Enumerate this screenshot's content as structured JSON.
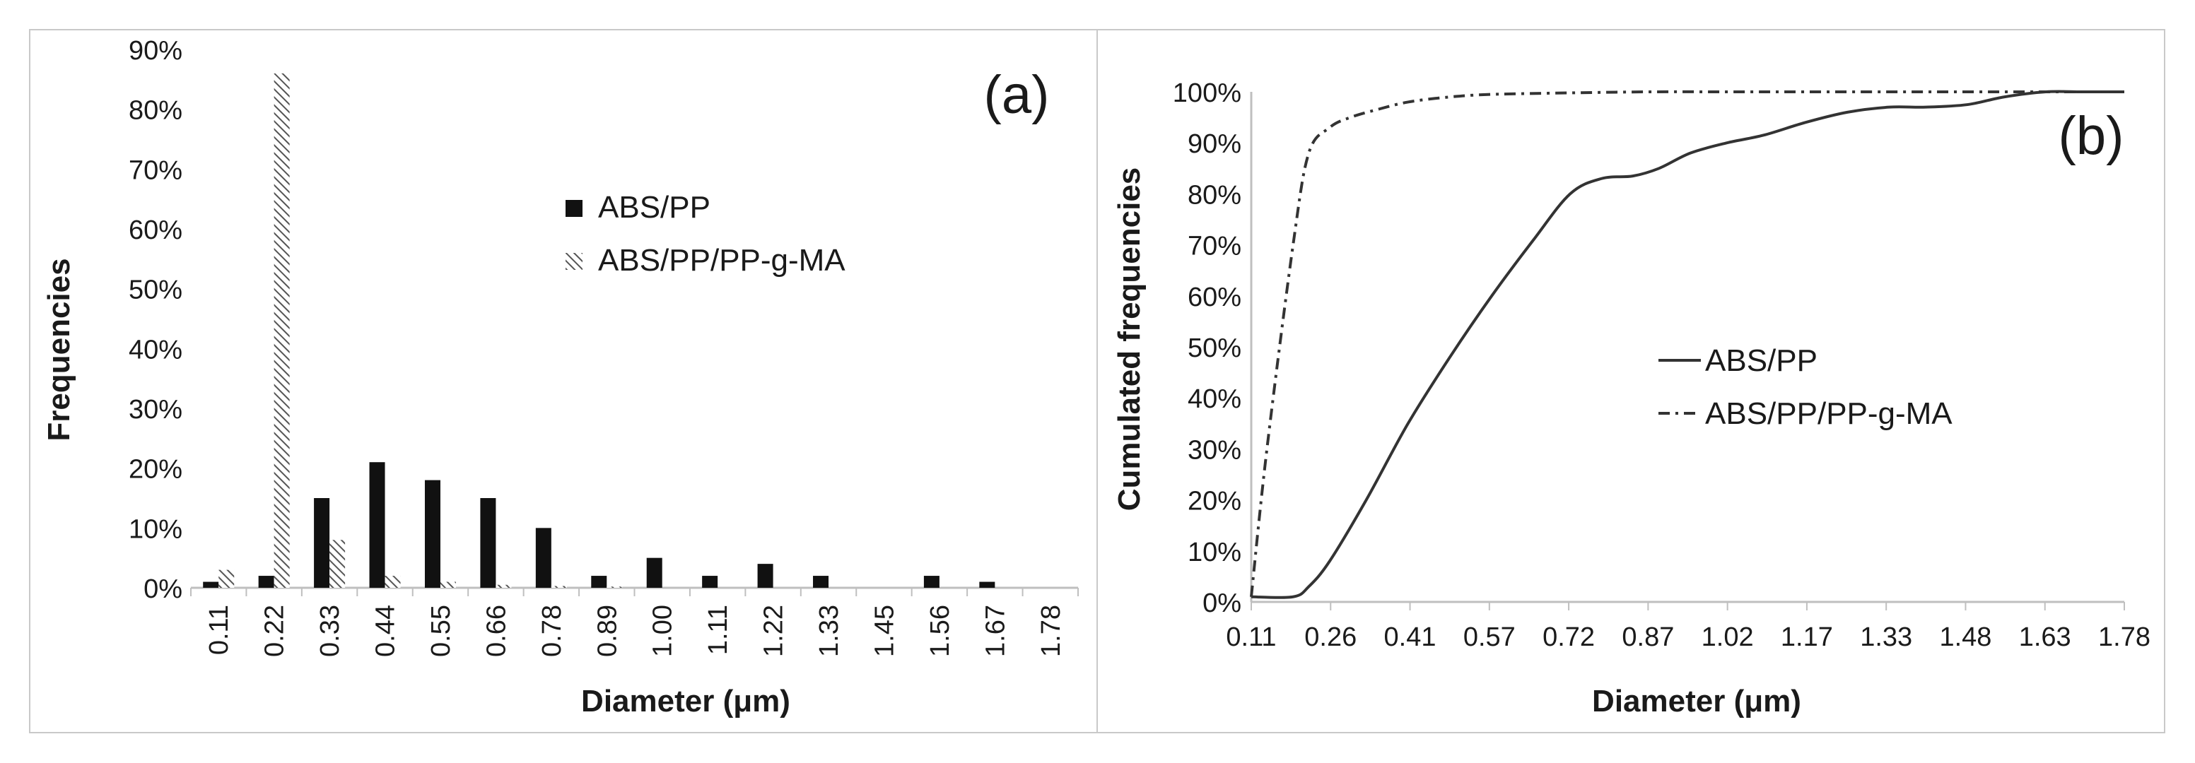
{
  "colors": {
    "abs_pp": "#111111",
    "hatch": "#555555",
    "axis": "#bfbfbf",
    "border": "#c9c9c9",
    "text": "#1a1a1a"
  },
  "chart_data": [
    {
      "type": "bar",
      "panel_label": "(a)",
      "title": "",
      "xlabel": "Diameter (μm)",
      "ylabel": "Frequencies",
      "ylim": [
        0,
        90
      ],
      "yticks": [
        "0%",
        "10%",
        "20%",
        "30%",
        "40%",
        "50%",
        "60%",
        "70%",
        "80%",
        "90%"
      ],
      "grid": false,
      "legend_position": "upper-middle",
      "categories": [
        "0.11",
        "0.22",
        "0.33",
        "0.44",
        "0.55",
        "0.66",
        "0.78",
        "0.89",
        "1.00",
        "1.11",
        "1.22",
        "1.33",
        "1.45",
        "1.56",
        "1.67",
        "1.78"
      ],
      "series": [
        {
          "name": "ABS/PP",
          "style": "solid",
          "values": [
            1,
            2,
            15,
            21,
            18,
            15,
            10,
            2,
            5,
            2,
            4,
            2,
            0,
            2,
            1,
            0
          ]
        },
        {
          "name": "ABS/PP/PP-g-MA",
          "style": "hatched",
          "values": [
            3,
            86,
            8,
            2,
            1,
            0.5,
            0.3,
            0.2,
            0,
            0,
            0,
            0,
            0,
            0,
            0,
            0
          ]
        }
      ]
    },
    {
      "type": "line",
      "panel_label": "(b)",
      "title": "",
      "xlabel": "Diameter (μm)",
      "ylabel": "Cumulated frequencies",
      "ylim": [
        0,
        100
      ],
      "xlim": [
        0.11,
        1.78
      ],
      "yticks": [
        "0%",
        "10%",
        "20%",
        "30%",
        "40%",
        "50%",
        "60%",
        "70%",
        "80%",
        "90%",
        "100%"
      ],
      "xticks": [
        "0.11",
        "0.26",
        "0.41",
        "0.57",
        "0.72",
        "0.87",
        "1.02",
        "1.17",
        "1.33",
        "1.48",
        "1.63",
        "1.78"
      ],
      "grid": false,
      "legend_position": "center",
      "series": [
        {
          "name": "ABS/PP",
          "style": "solid",
          "x": [
            0.11,
            0.19,
            0.22,
            0.26,
            0.33,
            0.41,
            0.49,
            0.57,
            0.65,
            0.72,
            0.78,
            0.84,
            0.89,
            0.95,
            1.02,
            1.09,
            1.17,
            1.25,
            1.33,
            1.4,
            1.48,
            1.55,
            1.63,
            1.7,
            1.78
          ],
          "y": [
            1,
            1,
            3,
            8,
            20,
            35,
            48,
            60,
            71,
            80,
            83,
            83.5,
            85,
            88,
            90,
            91.5,
            94,
            96,
            97,
            97,
            97.5,
            99,
            100,
            100,
            100
          ]
        },
        {
          "name": "ABS/PP/PP-g-MA",
          "style": "dash-dot",
          "x": [
            0.11,
            0.14,
            0.19,
            0.22,
            0.26,
            0.3,
            0.35,
            0.41,
            0.49,
            0.57,
            0.72,
            0.87,
            1.02,
            1.17,
            1.33,
            1.48,
            1.63,
            1.78
          ],
          "y": [
            1,
            30,
            70,
            88,
            93,
            95,
            96.5,
            98,
            99,
            99.5,
            99.8,
            100,
            100,
            100,
            100,
            100,
            100,
            100
          ]
        }
      ]
    }
  ]
}
